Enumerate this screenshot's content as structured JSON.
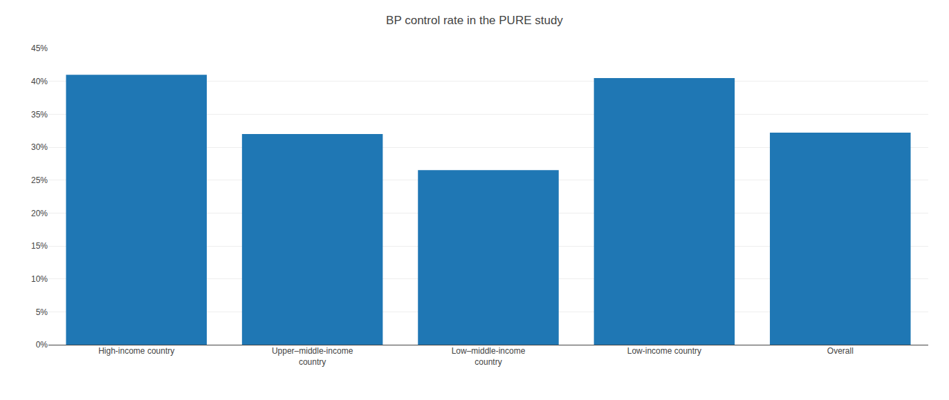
{
  "chart_data": {
    "type": "bar",
    "title": "BP control rate in the PURE study",
    "categories": [
      "High-income country",
      "Upper–middle-income\ncountry",
      "Low–middle-income\ncountry",
      "Low-income country",
      "Overall"
    ],
    "values": [
      0.41,
      0.32,
      0.265,
      0.405,
      0.322
    ],
    "ylim": [
      0,
      0.45
    ],
    "yticks": [
      {
        "value": 0.0,
        "label": "0%"
      },
      {
        "value": 0.05,
        "label": "5%"
      },
      {
        "value": 0.1,
        "label": "10%"
      },
      {
        "value": 0.15,
        "label": "15%"
      },
      {
        "value": 0.2,
        "label": "20%"
      },
      {
        "value": 0.25,
        "label": "25%"
      },
      {
        "value": 0.3,
        "label": "30%"
      },
      {
        "value": 0.35,
        "label": "35%"
      },
      {
        "value": 0.4,
        "label": "40%"
      },
      {
        "value": 0.45,
        "label": "45%"
      }
    ],
    "grid": true
  }
}
